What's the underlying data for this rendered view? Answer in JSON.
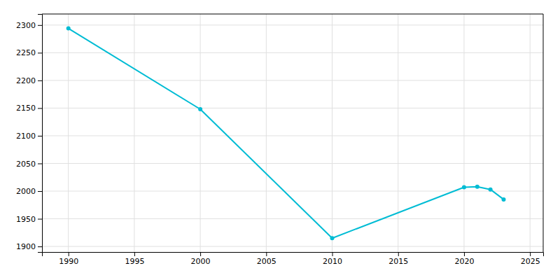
{
  "chart_data": {
    "type": "line",
    "x": [
      1990,
      2000,
      2010,
      2020,
      2021,
      2022,
      2023
    ],
    "values": [
      2294,
      2148,
      1915,
      2007,
      2008,
      2003,
      1985
    ],
    "color": "#00BCD4",
    "marker": "circle",
    "xlim": [
      1988,
      2026
    ],
    "ylim": [
      1890,
      2320
    ],
    "xticks": [
      1990,
      1995,
      2000,
      2005,
      2010,
      2015,
      2020,
      2025
    ],
    "yticks": [
      1900,
      1950,
      2000,
      2050,
      2100,
      2150,
      2200,
      2250,
      2300
    ],
    "grid": true
  }
}
